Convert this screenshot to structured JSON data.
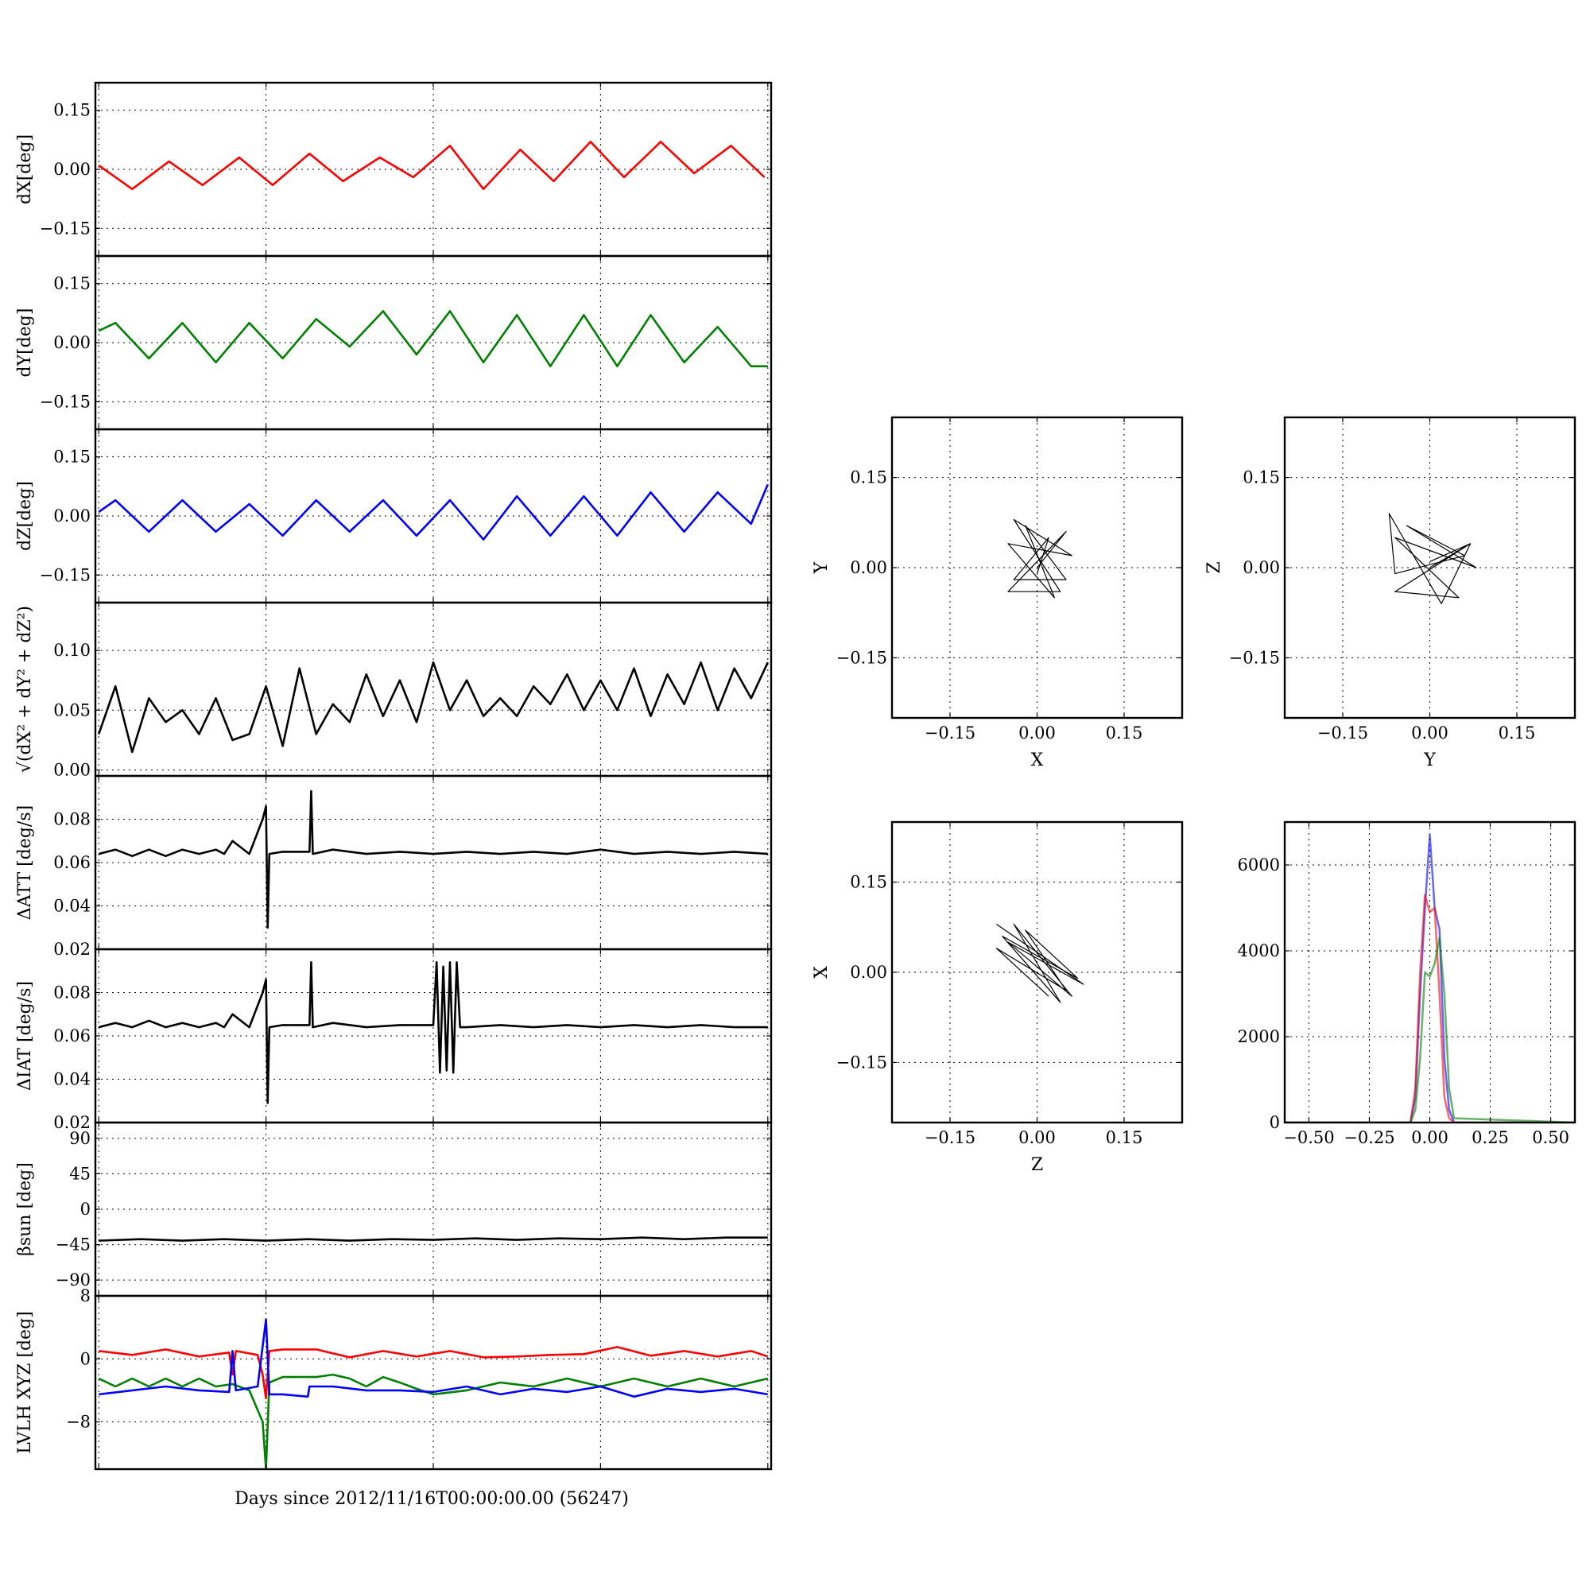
{
  "figure": {
    "xlabel": "Days since 2012/11/16T00:00:00.00 (56247)"
  },
  "chart_data": [
    {
      "id": "dx",
      "type": "line",
      "ylabel": "dX[deg]",
      "ylim": [
        -0.22,
        0.22
      ],
      "yticks": [
        0.15,
        0.0,
        -0.15
      ],
      "ytick_labels": [
        "0.15",
        "0.00",
        "−0.15"
      ],
      "grid": true,
      "series": [
        {
          "color": "#ff0000",
          "x": [
            0.0,
            0.2,
            0.42,
            0.62,
            0.84,
            1.04,
            1.26,
            1.46,
            1.68,
            1.88,
            2.1,
            2.3,
            2.52,
            2.72,
            2.94,
            3.14,
            3.36,
            3.56,
            3.78,
            3.98
          ],
          "y": [
            0.01,
            -0.05,
            0.02,
            -0.04,
            0.03,
            -0.04,
            0.04,
            -0.03,
            0.03,
            -0.02,
            0.06,
            -0.05,
            0.05,
            -0.03,
            0.07,
            -0.02,
            0.07,
            -0.01,
            0.06,
            -0.02
          ]
        }
      ]
    },
    {
      "id": "dy",
      "type": "line",
      "ylabel": "dY[deg]",
      "ylim": [
        -0.22,
        0.22
      ],
      "yticks": [
        0.15,
        0.0,
        -0.15
      ],
      "ytick_labels": [
        "0.15",
        "0.00",
        "−0.15"
      ],
      "grid": true,
      "series": [
        {
          "color": "#008000",
          "x": [
            0.0,
            0.1,
            0.3,
            0.5,
            0.7,
            0.9,
            1.1,
            1.3,
            1.5,
            1.7,
            1.9,
            2.1,
            2.3,
            2.5,
            2.7,
            2.9,
            3.1,
            3.3,
            3.5,
            3.7,
            3.9,
            4.0
          ],
          "y": [
            0.03,
            0.05,
            -0.04,
            0.05,
            -0.05,
            0.05,
            -0.04,
            0.06,
            -0.01,
            0.08,
            -0.03,
            0.08,
            -0.05,
            0.07,
            -0.06,
            0.07,
            -0.06,
            0.07,
            -0.05,
            0.04,
            -0.06,
            -0.06
          ]
        }
      ]
    },
    {
      "id": "dz",
      "type": "line",
      "ylabel": "dZ[deg]",
      "ylim": [
        -0.22,
        0.22
      ],
      "yticks": [
        0.15,
        0.0,
        -0.15
      ],
      "ytick_labels": [
        "0.15",
        "0.00",
        "−0.15"
      ],
      "grid": true,
      "series": [
        {
          "color": "#0000ff",
          "x": [
            0.0,
            0.1,
            0.3,
            0.5,
            0.7,
            0.9,
            1.1,
            1.3,
            1.5,
            1.7,
            1.9,
            2.1,
            2.3,
            2.5,
            2.7,
            2.9,
            3.1,
            3.3,
            3.5,
            3.7,
            3.9,
            4.0
          ],
          "y": [
            0.01,
            0.04,
            -0.04,
            0.04,
            -0.04,
            0.03,
            -0.05,
            0.04,
            -0.04,
            0.04,
            -0.05,
            0.04,
            -0.06,
            0.05,
            -0.05,
            0.05,
            -0.05,
            0.06,
            -0.04,
            0.06,
            -0.02,
            0.08
          ]
        }
      ]
    },
    {
      "id": "rss",
      "type": "line",
      "ylabel": "√(dX² + dY² + dZ²)",
      "ylim": [
        -0.005,
        0.14
      ],
      "yticks": [
        0.1,
        0.05,
        0.0
      ],
      "ytick_labels": [
        "0.10",
        "0.05",
        "0.00"
      ],
      "grid": true,
      "series": [
        {
          "color": "#000000",
          "x": [
            0.0,
            0.1,
            0.2,
            0.3,
            0.4,
            0.5,
            0.6,
            0.7,
            0.8,
            0.9,
            1.0,
            1.1,
            1.2,
            1.3,
            1.4,
            1.5,
            1.6,
            1.7,
            1.8,
            1.9,
            2.0,
            2.1,
            2.2,
            2.3,
            2.4,
            2.5,
            2.6,
            2.7,
            2.8,
            2.9,
            3.0,
            3.1,
            3.2,
            3.3,
            3.4,
            3.5,
            3.6,
            3.7,
            3.8,
            3.9,
            4.0
          ],
          "y": [
            0.03,
            0.07,
            0.015,
            0.06,
            0.04,
            0.05,
            0.03,
            0.06,
            0.025,
            0.03,
            0.07,
            0.02,
            0.085,
            0.03,
            0.055,
            0.04,
            0.08,
            0.045,
            0.075,
            0.04,
            0.09,
            0.05,
            0.075,
            0.045,
            0.06,
            0.045,
            0.07,
            0.055,
            0.08,
            0.05,
            0.075,
            0.05,
            0.085,
            0.045,
            0.08,
            0.055,
            0.09,
            0.05,
            0.085,
            0.06,
            0.09
          ]
        }
      ]
    },
    {
      "id": "datt",
      "type": "line",
      "ylabel": "ΔATT [deg/s]",
      "ylim": [
        0.02,
        0.1
      ],
      "yticks": [
        0.08,
        0.06,
        0.04,
        0.02
      ],
      "ytick_labels": [
        "0.08",
        "0.06",
        "0.04",
        "0.02"
      ],
      "grid": true,
      "series": [
        {
          "color": "#000000",
          "x": [
            0.0,
            0.1,
            0.2,
            0.3,
            0.4,
            0.5,
            0.6,
            0.7,
            0.75,
            0.8,
            0.9,
            0.98,
            1.0,
            1.01,
            1.02,
            1.1,
            1.26,
            1.27,
            1.28,
            1.4,
            1.6,
            1.8,
            2.0,
            2.2,
            2.4,
            2.6,
            2.8,
            3.0,
            3.2,
            3.4,
            3.6,
            3.8,
            4.0
          ],
          "y": [
            0.064,
            0.066,
            0.063,
            0.066,
            0.063,
            0.066,
            0.064,
            0.066,
            0.064,
            0.07,
            0.064,
            0.08,
            0.086,
            0.03,
            0.064,
            0.065,
            0.065,
            0.093,
            0.064,
            0.066,
            0.064,
            0.065,
            0.064,
            0.065,
            0.064,
            0.065,
            0.064,
            0.066,
            0.064,
            0.065,
            0.064,
            0.065,
            0.064
          ]
        }
      ]
    },
    {
      "id": "diat",
      "type": "line",
      "ylabel": "ΔIAT [deg/s]",
      "ylim": [
        0.02,
        0.1
      ],
      "yticks": [
        0.08,
        0.06,
        0.04,
        0.02
      ],
      "ytick_labels": [
        "0.08",
        "0.06",
        "0.04",
        "0.02"
      ],
      "grid": true,
      "series": [
        {
          "color": "#000000",
          "x": [
            0.0,
            0.1,
            0.2,
            0.3,
            0.4,
            0.5,
            0.6,
            0.7,
            0.75,
            0.8,
            0.9,
            0.98,
            1.0,
            1.01,
            1.02,
            1.1,
            1.26,
            1.27,
            1.28,
            1.4,
            1.6,
            1.8,
            2.0,
            2.02,
            2.04,
            2.06,
            2.08,
            2.1,
            2.12,
            2.14,
            2.16,
            2.2,
            2.4,
            2.6,
            2.8,
            3.0,
            3.2,
            3.4,
            3.6,
            3.8,
            4.0
          ],
          "y": [
            0.064,
            0.066,
            0.064,
            0.067,
            0.064,
            0.066,
            0.064,
            0.066,
            0.064,
            0.07,
            0.064,
            0.08,
            0.086,
            0.029,
            0.064,
            0.065,
            0.065,
            0.094,
            0.064,
            0.066,
            0.064,
            0.065,
            0.065,
            0.094,
            0.043,
            0.092,
            0.044,
            0.094,
            0.043,
            0.094,
            0.064,
            0.064,
            0.065,
            0.064,
            0.065,
            0.064,
            0.065,
            0.064,
            0.065,
            0.064,
            0.064
          ]
        }
      ]
    },
    {
      "id": "beta",
      "type": "line",
      "ylabel": "βsun [deg]",
      "ylim": [
        -110,
        110
      ],
      "yticks": [
        90,
        45,
        0,
        -45,
        -90
      ],
      "ytick_labels": [
        "90",
        "45",
        "0",
        "−45",
        "−90"
      ],
      "grid": true,
      "series": [
        {
          "color": "#000000",
          "x": [
            0.0,
            0.25,
            0.5,
            0.75,
            1.0,
            1.25,
            1.5,
            1.75,
            2.0,
            2.25,
            2.5,
            2.75,
            3.0,
            3.25,
            3.5,
            3.75,
            4.0
          ],
          "y": [
            -40,
            -38,
            -40,
            -38,
            -40,
            -38,
            -40,
            -38,
            -39,
            -37,
            -39,
            -37,
            -38,
            -36,
            -38,
            -36,
            -36
          ]
        }
      ]
    },
    {
      "id": "lvlh",
      "type": "line",
      "ylabel": "LVLH XYZ [deg]",
      "ylim": [
        -14,
        8
      ],
      "yticks": [
        8,
        0,
        -8
      ],
      "ytick_labels": [
        "8",
        "0",
        "−8"
      ],
      "grid": true,
      "series": [
        {
          "color": "#ff0000",
          "x": [
            0.0,
            0.2,
            0.4,
            0.6,
            0.78,
            0.8,
            0.82,
            0.95,
            0.98,
            1.0,
            1.02,
            1.1,
            1.3,
            1.5,
            1.7,
            1.9,
            2.1,
            2.3,
            2.5,
            2.7,
            2.9,
            3.1,
            3.3,
            3.5,
            3.7,
            3.9,
            4.0
          ],
          "y": [
            1,
            0.5,
            1.2,
            0.3,
            0.8,
            -2,
            1,
            0.5,
            -2,
            -5,
            1,
            1.2,
            1.2,
            0.2,
            1.0,
            0.3,
            1.0,
            0.2,
            0.3,
            0.5,
            0.6,
            1.5,
            0.4,
            1.0,
            0.3,
            1.0,
            0.3
          ]
        },
        {
          "color": "#008000",
          "x": [
            0.0,
            0.1,
            0.2,
            0.3,
            0.4,
            0.5,
            0.6,
            0.7,
            0.8,
            0.9,
            0.98,
            1.0,
            1.02,
            1.1,
            1.2,
            1.3,
            1.4,
            1.5,
            1.6,
            1.7,
            1.8,
            1.9,
            2.0,
            2.2,
            2.4,
            2.6,
            2.8,
            3.0,
            3.2,
            3.4,
            3.6,
            3.8,
            4.0
          ],
          "y": [
            -2.5,
            -3.5,
            -2.5,
            -3.5,
            -2.5,
            -3.5,
            -2.5,
            -3.5,
            -3.2,
            -4,
            -8,
            -14,
            -3,
            -2.3,
            -2.3,
            -2.3,
            -2.0,
            -2.5,
            -3.5,
            -2.3,
            -3.0,
            -3.8,
            -4.5,
            -4.0,
            -3.0,
            -3.5,
            -2.5,
            -3.5,
            -2.5,
            -3.5,
            -2.5,
            -3.5,
            -2.5
          ]
        },
        {
          "color": "#0000ff",
          "x": [
            0.0,
            0.2,
            0.4,
            0.6,
            0.78,
            0.8,
            0.82,
            0.95,
            1.0,
            1.02,
            1.1,
            1.25,
            1.26,
            1.4,
            1.6,
            1.8,
            2.0,
            2.2,
            2.4,
            2.6,
            2.8,
            3.0,
            3.2,
            3.4,
            3.6,
            3.8,
            4.0
          ],
          "y": [
            -4.5,
            -4,
            -3.5,
            -4,
            -4.2,
            1,
            -4,
            -3.5,
            5,
            -4.5,
            -4.5,
            -4.8,
            -3.5,
            -3.5,
            -4,
            -4,
            -4.2,
            -3.5,
            -4.5,
            -3.8,
            -4.2,
            -3.5,
            -4.8,
            -3.8,
            -4.2,
            -3.8,
            -4.5
          ]
        }
      ]
    },
    {
      "id": "xy",
      "type": "line",
      "xlabel": "X",
      "ylabel": "Y",
      "xlim": [
        -0.25,
        0.25
      ],
      "ylim": [
        -0.25,
        0.25
      ],
      "xticks": [
        -0.15,
        0.0,
        0.15
      ],
      "xtick_labels": [
        "−0.15",
        "0.00",
        "0.15"
      ],
      "yticks": [
        0.15,
        0.0,
        -0.15
      ],
      "ytick_labels": [
        "0.15",
        "0.00",
        "−0.15"
      ],
      "grid": true,
      "series": [
        {
          "color": "#000000",
          "x": [
            0.0,
            0.05,
            -0.05,
            0.04,
            -0.04,
            0.06,
            -0.05,
            0.03,
            -0.02,
            0.05,
            -0.04,
            0.02,
            0.0
          ],
          "y": [
            0.0,
            0.06,
            -0.04,
            -0.04,
            0.08,
            0.02,
            0.04,
            -0.05,
            0.07,
            -0.02,
            -0.02,
            0.05,
            -0.01
          ]
        }
      ]
    },
    {
      "id": "yz",
      "type": "line",
      "xlabel": "Y",
      "ylabel": "Z",
      "xlim": [
        -0.25,
        0.25
      ],
      "ylim": [
        -0.25,
        0.25
      ],
      "xticks": [
        -0.15,
        0.0,
        0.15
      ],
      "xtick_labels": [
        "−0.15",
        "0.00",
        "0.15"
      ],
      "yticks": [
        0.15,
        0.0,
        -0.15
      ],
      "ytick_labels": [
        "0.15",
        "0.00",
        "−0.15"
      ],
      "grid": true,
      "series": [
        {
          "color": "#000000",
          "x": [
            0.0,
            0.07,
            -0.06,
            0.05,
            -0.06,
            0.08,
            -0.04,
            0.06,
            -0.06,
            -0.07,
            0.02,
            0.07,
            0.0
          ],
          "y": [
            0.0,
            0.04,
            -0.04,
            -0.05,
            0.05,
            0.0,
            0.07,
            0.02,
            -0.01,
            0.09,
            -0.06,
            0.04,
            0.01
          ]
        }
      ]
    },
    {
      "id": "zx",
      "type": "line",
      "xlabel": "Z",
      "ylabel": "X",
      "xlim": [
        -0.25,
        0.25
      ],
      "ylim": [
        -0.25,
        0.25
      ],
      "xticks": [
        -0.15,
        0.0,
        0.15
      ],
      "xtick_labels": [
        "−0.15",
        "0.00",
        "0.15"
      ],
      "yticks": [
        0.15,
        0.0,
        -0.15
      ],
      "ytick_labels": [
        "0.15",
        "0.00",
        "−0.15"
      ],
      "grid": true,
      "series": [
        {
          "color": "#000000",
          "x": [
            -0.07,
            0.08,
            -0.05,
            0.06,
            -0.04,
            0.04,
            -0.06,
            0.07,
            -0.02,
            0.05,
            -0.07,
            0.02
          ],
          "y": [
            0.08,
            -0.02,
            0.05,
            -0.04,
            0.08,
            -0.05,
            0.06,
            -0.01,
            0.07,
            -0.03,
            0.04,
            -0.04
          ]
        }
      ]
    },
    {
      "id": "hist",
      "type": "line",
      "xlim": [
        -0.6,
        0.6
      ],
      "ylim": [
        0,
        7000
      ],
      "xticks": [
        -0.5,
        -0.25,
        0.0,
        0.25,
        0.5
      ],
      "xtick_labels": [
        "−0.50",
        "−0.25",
        "0.00",
        "0.25",
        "0.50"
      ],
      "yticks": [
        6000,
        4000,
        2000,
        0
      ],
      "ytick_labels": [
        "6000",
        "4000",
        "2000",
        "0"
      ],
      "grid": true,
      "series": [
        {
          "color": "#0000ff",
          "x": [
            -0.6,
            -0.08,
            -0.06,
            -0.04,
            -0.02,
            0.0,
            0.02,
            0.04,
            0.06,
            0.08,
            0.1,
            0.6
          ],
          "y": [
            0,
            0,
            600,
            3000,
            5000,
            6700,
            5000,
            4500,
            1500,
            300,
            0,
            0
          ]
        },
        {
          "color": "#ff0000",
          "x": [
            -0.6,
            -0.08,
            -0.06,
            -0.04,
            -0.02,
            0.0,
            0.02,
            0.04,
            0.06,
            0.08,
            0.1,
            0.6
          ],
          "y": [
            0,
            0,
            800,
            3500,
            5300,
            4900,
            5000,
            3000,
            600,
            100,
            0,
            0
          ]
        },
        {
          "color": "#008000",
          "x": [
            -0.6,
            -0.08,
            -0.06,
            -0.04,
            -0.02,
            0.0,
            0.02,
            0.04,
            0.06,
            0.08,
            0.1,
            0.6
          ],
          "y": [
            0,
            0,
            300,
            1500,
            3500,
            3400,
            3700,
            4300,
            3000,
            800,
            100,
            0
          ]
        }
      ]
    }
  ]
}
